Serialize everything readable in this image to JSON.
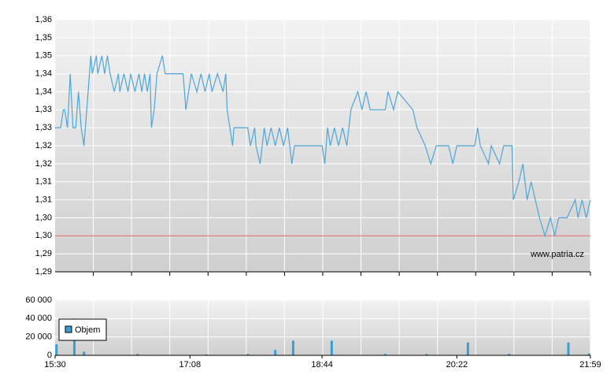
{
  "chart_data": [
    {
      "type": "line",
      "color": "#4da6d6",
      "grid": true,
      "reference_line": 1.3,
      "reference_color": "#e06060",
      "watermark": "www.patria.cz",
      "xlim": [
        "15:30",
        "21:59"
      ],
      "ylim": [
        1.29,
        1.36
      ],
      "yticks": [
        {
          "value": 1.36,
          "label": "1,36"
        },
        {
          "value": 1.355,
          "label": "1,35"
        },
        {
          "value": 1.35,
          "label": "1,35"
        },
        {
          "value": 1.345,
          "label": "1,34"
        },
        {
          "value": 1.34,
          "label": "1,34"
        },
        {
          "value": 1.335,
          "label": "1,33"
        },
        {
          "value": 1.33,
          "label": "1,33"
        },
        {
          "value": 1.325,
          "label": "1,32"
        },
        {
          "value": 1.32,
          "label": "1,32"
        },
        {
          "value": 1.315,
          "label": "1,31"
        },
        {
          "value": 1.31,
          "label": "1,31"
        },
        {
          "value": 1.305,
          "label": "1,30"
        },
        {
          "value": 1.3,
          "label": "1,30"
        },
        {
          "value": 1.295,
          "label": "1,29"
        },
        {
          "value": 1.29,
          "label": "1,29"
        }
      ],
      "x": [
        "15:30",
        "15:34",
        "15:36",
        "15:37",
        "15:39",
        "15:41",
        "15:43",
        "15:45",
        "15:47",
        "15:49",
        "15:51",
        "15:53",
        "15:56",
        "15:57",
        "16:00",
        "16:01",
        "16:04",
        "16:06",
        "16:08",
        "16:10",
        "16:13",
        "16:16",
        "16:17",
        "16:20",
        "16:23",
        "16:25",
        "16:28",
        "16:31",
        "16:33",
        "16:35",
        "16:37",
        "16:39",
        "16:40",
        "16:42",
        "16:44",
        "16:48",
        "16:50",
        "17:03",
        "17:05",
        "17:07",
        "17:09",
        "17:13",
        "17:16",
        "17:19",
        "17:22",
        "17:24",
        "17:28",
        "17:32",
        "17:34",
        "17:35",
        "17:37",
        "17:39",
        "17:40",
        "17:50",
        "17:52",
        "17:55",
        "17:56",
        "17:59",
        "18:02",
        "18:04",
        "18:07",
        "18:10",
        "18:13",
        "18:16",
        "18:19",
        "18:22",
        "18:24",
        "18:44",
        "18:46",
        "18:48",
        "18:50",
        "18:53",
        "18:56",
        "18:59",
        "19:02",
        "19:05",
        "19:10",
        "19:13",
        "19:16",
        "19:19",
        "19:22",
        "19:30",
        "19:32",
        "19:36",
        "19:39",
        "19:50",
        "19:53",
        "19:59",
        "20:03",
        "20:07",
        "20:16",
        "20:19",
        "20:22",
        "20:35",
        "20:37",
        "20:39",
        "20:45",
        "20:47",
        "20:53",
        "20:56",
        "21:02",
        "21:03",
        "21:07",
        "21:10",
        "21:13",
        "21:16",
        "21:22",
        "21:26",
        "21:30",
        "21:33",
        "21:36",
        "21:42",
        "21:48",
        "21:50",
        "21:53",
        "21:56",
        "21:59"
      ],
      "values": [
        1.33,
        1.33,
        1.335,
        1.335,
        1.33,
        1.345,
        1.33,
        1.33,
        1.34,
        1.33,
        1.325,
        1.335,
        1.35,
        1.345,
        1.35,
        1.345,
        1.35,
        1.345,
        1.35,
        1.345,
        1.34,
        1.345,
        1.34,
        1.345,
        1.34,
        1.345,
        1.34,
        1.345,
        1.34,
        1.345,
        1.34,
        1.345,
        1.33,
        1.335,
        1.345,
        1.35,
        1.345,
        1.345,
        1.335,
        1.34,
        1.345,
        1.34,
        1.345,
        1.34,
        1.345,
        1.34,
        1.345,
        1.34,
        1.345,
        1.335,
        1.33,
        1.325,
        1.33,
        1.33,
        1.325,
        1.33,
        1.325,
        1.32,
        1.33,
        1.325,
        1.33,
        1.325,
        1.33,
        1.325,
        1.33,
        1.32,
        1.325,
        1.325,
        1.32,
        1.33,
        1.325,
        1.33,
        1.325,
        1.33,
        1.325,
        1.335,
        1.34,
        1.335,
        1.34,
        1.335,
        1.335,
        1.335,
        1.34,
        1.335,
        1.34,
        1.335,
        1.33,
        1.325,
        1.32,
        1.325,
        1.325,
        1.32,
        1.325,
        1.325,
        1.33,
        1.325,
        1.32,
        1.325,
        1.32,
        1.325,
        1.325,
        1.31,
        1.315,
        1.32,
        1.31,
        1.315,
        1.305,
        1.3,
        1.305,
        1.3,
        1.305,
        1.305,
        1.31,
        1.305,
        1.31,
        1.305,
        1.31
      ]
    },
    {
      "type": "bar",
      "legend": "upper-left",
      "xlim": [
        "15:30",
        "21:59"
      ],
      "xticks": [
        "15:30",
        "17:08",
        "18:44",
        "20:22",
        "21:59"
      ],
      "ylim": [
        0,
        60000
      ],
      "yticks": [
        0,
        {
          "value": 20000,
          "label": "20 000"
        },
        {
          "value": 40000,
          "label": "40 000"
        },
        {
          "value": 60000,
          "label": "60 000"
        }
      ],
      "x": [
        "15:31",
        "15:44",
        "15:51",
        "16:30",
        "17:20",
        "17:50",
        "18:10",
        "18:23",
        "18:51",
        "19:30",
        "20:00",
        "20:30",
        "21:00",
        "21:43",
        "21:58"
      ],
      "series": [
        {
          "name": "Objem",
          "color": "#3a9fd0",
          "values": [
            12000,
            40000,
            4000,
            1500,
            1000,
            1500,
            6000,
            16000,
            16000,
            1500,
            1500,
            14000,
            1500,
            14000,
            2000
          ]
        }
      ]
    }
  ]
}
